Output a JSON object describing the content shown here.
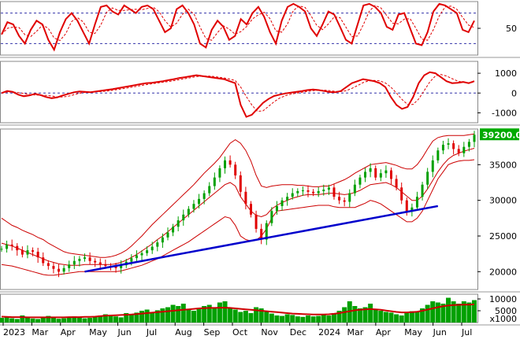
{
  "colors": {
    "price_up": "#00a000",
    "price_down": "#e00000",
    "indicator": "#e00000",
    "bollinger": "#cc0000",
    "ma": "#cc0000",
    "trendline": "#0000cc",
    "volume": "#00a000",
    "price_badge_bg": "#00aa00",
    "ref_line": "#3333aa",
    "panel_border": "#888888"
  },
  "chart_data": [
    {
      "type": "line",
      "panel": "oscillator (RSI-like)",
      "title": "",
      "ylabel": "",
      "yticks": [
        "50"
      ],
      "reference_levels": [
        30,
        70
      ],
      "ylim": [
        15,
        85
      ],
      "x_ticks": [
        "2023",
        "Mar",
        "Apr",
        "May",
        "Jun",
        "Jul",
        "Aug",
        "Sep",
        "Oct",
        "Nov",
        "Dec",
        "2024",
        "Mar",
        "Apr",
        "May",
        "Jun",
        "Jul"
      ],
      "series": [
        {
          "values": [
            42,
            58,
            55,
            40,
            30,
            48,
            60,
            55,
            35,
            22,
            45,
            62,
            70,
            60,
            45,
            30,
            55,
            78,
            80,
            72,
            68,
            80,
            75,
            70,
            78,
            80,
            75,
            60,
            45,
            50,
            75,
            80,
            70,
            55,
            30,
            25,
            48,
            60,
            52,
            35,
            40,
            62,
            55,
            70,
            78,
            65,
            45,
            30,
            60,
            78,
            82,
            78,
            72,
            50,
            40,
            55,
            72,
            68,
            52,
            35,
            30,
            55,
            80,
            82,
            78,
            70,
            52,
            48,
            68,
            70,
            50,
            30,
            28,
            45,
            72,
            82,
            80,
            75,
            70,
            48,
            45,
            60
          ]
        }
      ]
    },
    {
      "type": "line",
      "panel": "momentum oscillator (MACD-like)",
      "yticks": [
        "1000",
        "0",
        "-1000"
      ],
      "ylim": [
        -1500,
        1600
      ],
      "reference_level": 0,
      "series": [
        {
          "values": [
            0,
            100,
            60,
            -80,
            -160,
            -120,
            -40,
            -100,
            -200,
            -260,
            -220,
            -120,
            -40,
            40,
            80,
            60,
            40,
            80,
            120,
            160,
            200,
            250,
            300,
            350,
            400,
            450,
            500,
            520,
            560,
            600,
            650,
            700,
            760,
            800,
            850,
            900,
            860,
            820,
            780,
            740,
            700,
            600,
            500,
            -600,
            -1200,
            -1100,
            -800,
            -500,
            -300,
            -150,
            -80,
            -20,
            20,
            60,
            100,
            150,
            180,
            150,
            100,
            50,
            40,
            100,
            300,
            500,
            600,
            700,
            650,
            600,
            500,
            300,
            -200,
            -600,
            -800,
            -700,
            -200,
            500,
            900,
            1050,
            1000,
            800,
            600,
            500,
            520,
            560,
            500,
            600
          ]
        }
      ]
    },
    {
      "type": "candlestick",
      "panel": "price",
      "yticks": [
        "35000",
        "30000",
        "25000",
        "20000"
      ],
      "ylim": [
        17500,
        40000
      ],
      "last_price_label": "39200.00",
      "close": [
        23200,
        23800,
        23600,
        23000,
        22400,
        23000,
        22800,
        22000,
        21200,
        20800,
        20400,
        20000,
        20500,
        21000,
        21500,
        21800,
        22000,
        21500,
        21300,
        21000,
        20800,
        20700,
        20500,
        20900,
        21400,
        21900,
        22300,
        22600,
        23000,
        23500,
        24100,
        24800,
        25500,
        26300,
        27200,
        28000,
        28800,
        29500,
        30200,
        31000,
        32000,
        33200,
        34500,
        35600,
        35000,
        33500,
        31200,
        29500,
        28000,
        26000,
        24500,
        26800,
        28500,
        29200,
        30000,
        30500,
        31000,
        31300,
        31400,
        31200,
        31000,
        31300,
        31500,
        31800,
        30500,
        30000,
        29800,
        31000,
        32200,
        33200,
        34000,
        34500,
        33200,
        33800,
        34200,
        33000,
        31800,
        30000,
        28500,
        29000,
        30500,
        32200,
        34000,
        35600,
        37000,
        37800,
        38000,
        37200,
        36600,
        37500,
        38200,
        39200
      ],
      "bollinger_upper": [
        27500,
        27000,
        26500,
        26200,
        25800,
        25500,
        25200,
        24800,
        24500,
        24000,
        23600,
        23200,
        22800,
        22600,
        22500,
        22400,
        22300,
        22200,
        22100,
        22000,
        22000,
        22100,
        22300,
        22600,
        23000,
        23600,
        24300,
        25000,
        25800,
        26600,
        27300,
        28000,
        28700,
        29400,
        30100,
        30800,
        31500,
        32200,
        33000,
        33800,
        34500,
        35200,
        36000,
        37000,
        38000,
        38500,
        38000,
        37000,
        35500,
        33500,
        32000,
        31800,
        32000,
        32100,
        32200,
        32200,
        32200,
        32100,
        32100,
        32000,
        31900,
        31900,
        32000,
        32000,
        32300,
        32600,
        32900,
        33300,
        33800,
        34200,
        34600,
        35000,
        35100,
        35200,
        35300,
        35100,
        34900,
        34600,
        34400,
        34400,
        35000,
        36000,
        37200,
        38300,
        38800,
        39000,
        39100,
        39100,
        39100,
        39100,
        39200,
        39300
      ],
      "bollinger_lower": [
        21000,
        20900,
        20800,
        20600,
        20400,
        20200,
        20000,
        19800,
        19600,
        19500,
        19500,
        19600,
        19700,
        19800,
        19900,
        20000,
        20000,
        20000,
        20000,
        20000,
        20000,
        20000,
        20000,
        20100,
        20300,
        20500,
        20700,
        20900,
        21200,
        21500,
        21800,
        22200,
        22600,
        23000,
        23400,
        23800,
        24200,
        24700,
        25200,
        25700,
        26200,
        26700,
        27200,
        27700,
        27500,
        26500,
        25000,
        24500,
        24300,
        24400,
        25000,
        26000,
        27500,
        28500,
        28600,
        28700,
        28800,
        28900,
        29000,
        29100,
        29200,
        29300,
        29300,
        29300,
        29100,
        29000,
        29000,
        29000,
        29000,
        29300,
        29600,
        30000,
        29800,
        29500,
        29000,
        28500,
        28000,
        27500,
        27000,
        27000,
        27500,
        28500,
        30000,
        31500,
        33000,
        34000,
        35000,
        35300,
        35500,
        35600,
        35600,
        35700
      ],
      "moving_average": [
        24000,
        23800,
        23600,
        23300,
        23000,
        22700,
        22400,
        22100,
        21800,
        21500,
        21300,
        21100,
        21000,
        20900,
        20900,
        20900,
        21000,
        21000,
        21000,
        21000,
        21000,
        21000,
        21100,
        21300,
        21600,
        22000,
        22400,
        22900,
        23400,
        23900,
        24500,
        25000,
        25600,
        26200,
        26800,
        27400,
        28000,
        28600,
        29200,
        29800,
        30400,
        31000,
        31600,
        32200,
        32500,
        32000,
        30500,
        29500,
        28500,
        27900,
        27700,
        28000,
        28800,
        29300,
        29700,
        30000,
        30300,
        30500,
        30700,
        30800,
        30800,
        30800,
        30900,
        31000,
        31000,
        30900,
        30800,
        30900,
        31100,
        31400,
        31800,
        32200,
        32300,
        32400,
        32500,
        32200,
        31800,
        31200,
        30600,
        30000,
        30000,
        30600,
        31600,
        32800,
        34000,
        35000,
        35800,
        36300,
        36600,
        36900,
        37100,
        37300
      ],
      "trendline": {
        "from": [
          16,
          20000
        ],
        "to": [
          84,
          29200
        ]
      }
    },
    {
      "type": "bar",
      "panel": "volume",
      "unit_label": "x1000",
      "yticks": [
        "10000",
        "5000"
      ],
      "ylim": [
        0,
        12000
      ],
      "values": [
        2000,
        2500,
        1800,
        1500,
        3000,
        2000,
        1700,
        1500,
        2200,
        2800,
        2000,
        1600,
        1800,
        2400,
        2600,
        2200,
        1800,
        2000,
        2500,
        3000,
        3500,
        2800,
        2600,
        2200,
        4000,
        3500,
        4200,
        5000,
        5500,
        4500,
        5200,
        6000,
        6500,
        7500,
        7000,
        8000,
        5500,
        5000,
        6000,
        7000,
        7500,
        6500,
        8500,
        9000,
        6000,
        5500,
        4500,
        5000,
        4000,
        6500,
        6000,
        4500,
        3800,
        3000,
        2800,
        3500,
        3200,
        2600,
        2400,
        3000,
        2600,
        2800,
        3200,
        3000,
        4000,
        5000,
        6500,
        9000,
        7000,
        6000,
        6500,
        8000,
        5500,
        5000,
        4500,
        4200,
        3500,
        3000,
        4000,
        4800,
        4500,
        6000,
        7500,
        9000,
        8500,
        8000,
        10500,
        9000,
        8000,
        9000,
        8500,
        9500
      ],
      "moving_average": [
        2500,
        2400,
        2300,
        2300,
        2300,
        2200,
        2200,
        2200,
        2200,
        2200,
        2200,
        2200,
        2200,
        2300,
        2300,
        2300,
        2400,
        2400,
        2500,
        2700,
        2900,
        3000,
        3100,
        3200,
        3300,
        3400,
        3600,
        3800,
        4000,
        4200,
        4400,
        4600,
        4800,
        5000,
        5200,
        5400,
        5600,
        5800,
        6000,
        6100,
        6200,
        6200,
        6300,
        6300,
        6200,
        6000,
        5800,
        5600,
        5400,
        5200,
        5000,
        4800,
        4600,
        4400,
        4200,
        4000,
        3800,
        3700,
        3600,
        3500,
        3400,
        3400,
        3400,
        3500,
        3700,
        4000,
        4400,
        4800,
        5200,
        5400,
        5600,
        5700,
        5600,
        5400,
        5100,
        4800,
        4500,
        4300,
        4300,
        4400,
        4600,
        5000,
        5500,
        6000,
        6500,
        6900,
        7200,
        7400,
        7500,
        7600,
        7600,
        7700
      ]
    }
  ]
}
